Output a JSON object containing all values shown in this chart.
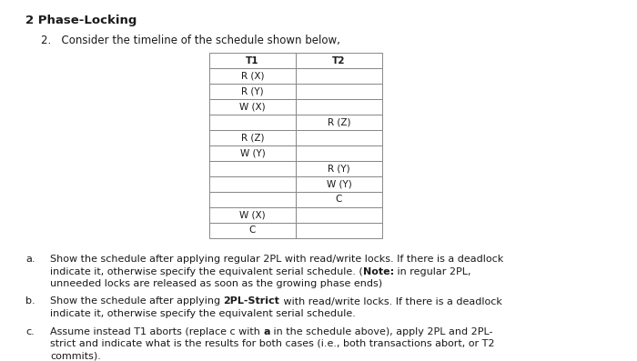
{
  "title": "2 Phase-Locking",
  "subtitle": "2.   Consider the timeline of the schedule shown below,",
  "table_headers": [
    "T1",
    "T2"
  ],
  "table_rows": [
    [
      "R (X)",
      ""
    ],
    [
      "R (Y)",
      ""
    ],
    [
      "W (X)",
      ""
    ],
    [
      "",
      "R (Z)"
    ],
    [
      "R (Z)",
      ""
    ],
    [
      "W (Y)",
      ""
    ],
    [
      "",
      "R (Y)"
    ],
    [
      "",
      "W (Y)"
    ],
    [
      "",
      "C"
    ],
    [
      "W (X)",
      ""
    ],
    [
      "C",
      ""
    ]
  ],
  "questions": [
    {
      "label": "a.",
      "parts": [
        [
          {
            "text": "Show the schedule after applying regular 2PL with read/write locks. If there is a deadlock",
            "bold": false
          }
        ],
        [
          {
            "text": "indicate it, otherwise specify the equivalent serial schedule. (",
            "bold": false
          },
          {
            "text": "Note:",
            "bold": true
          },
          {
            "text": " in regular 2PL,",
            "bold": false
          }
        ],
        [
          {
            "text": "unneeded locks are released as soon as the growing phase ends)",
            "bold": false
          }
        ]
      ]
    },
    {
      "label": "b.",
      "parts": [
        [
          {
            "text": "Show the schedule after applying ",
            "bold": false
          },
          {
            "text": "2PL-Strict",
            "bold": true
          },
          {
            "text": " with read/write locks. If there is a deadlock",
            "bold": false
          }
        ],
        [
          {
            "text": "indicate it, otherwise specify the equivalent serial schedule.",
            "bold": false
          }
        ]
      ]
    },
    {
      "label": "c.",
      "parts": [
        [
          {
            "text": "Assume instead T1 aborts (replace c with ",
            "bold": false
          },
          {
            "text": "a",
            "bold": true
          },
          {
            "text": " in the schedule above), apply 2PL and 2PL-",
            "bold": false
          }
        ],
        [
          {
            "text": "strict and indicate what is the results for both cases (i.e., both transactions abort, or T2",
            "bold": false
          }
        ],
        [
          {
            "text": "commits).",
            "bold": false
          }
        ]
      ]
    }
  ],
  "bg_color": "#ffffff",
  "text_color": "#1a1a1a",
  "table_line_color": "#888888",
  "font_size_title": 9.5,
  "font_size_subtitle": 8.5,
  "font_size_table": 7.5,
  "font_size_questions": 8.0
}
